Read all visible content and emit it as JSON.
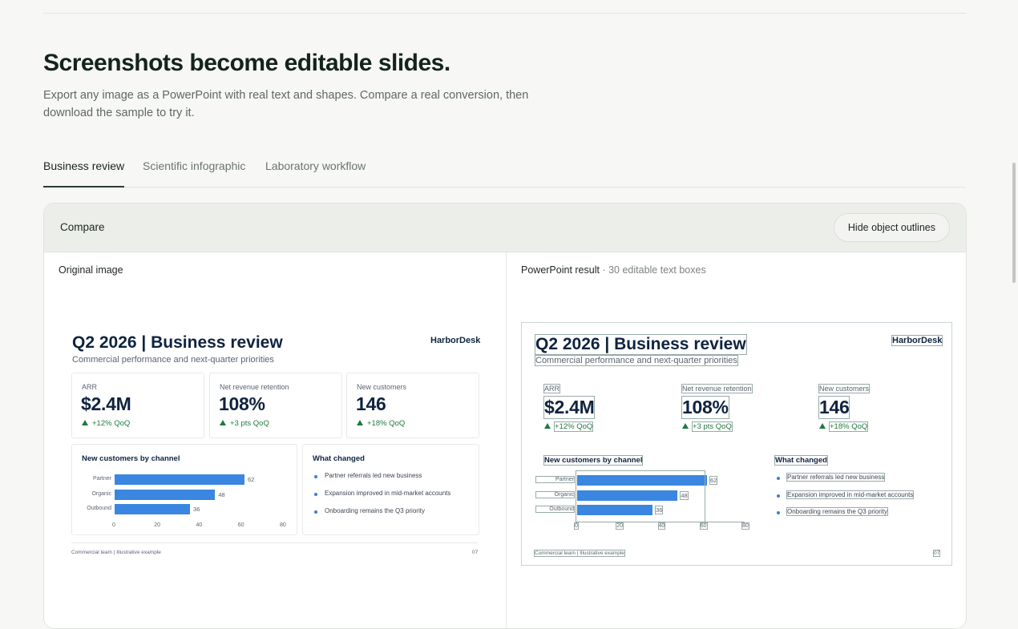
{
  "header": {
    "title": "Screenshots become editable slides.",
    "subtitle": "Export any image as a PowerPoint with real text and shapes. Compare a real conversion, then download the sample to try it."
  },
  "tabs": [
    {
      "label": "Business review",
      "active": true
    },
    {
      "label": "Scientific infographic",
      "active": false
    },
    {
      "label": "Laboratory workflow",
      "active": false
    }
  ],
  "compare": {
    "label": "Compare",
    "toggle_label": "Hide object outlines",
    "left_label": "Original image",
    "right_label": "PowerPoint result",
    "right_meta": "· 30 editable text boxes"
  },
  "slide": {
    "title": "Q2 2026 | Business review",
    "subtitle": "Commercial performance and next-quarter priorities",
    "brand": "HarborDesk",
    "kpis": [
      {
        "label": "ARR",
        "value": "$2.4M",
        "delta": "+12% QoQ"
      },
      {
        "label": "Net revenue retention",
        "value": "108%",
        "delta": "+3 pts QoQ"
      },
      {
        "label": "New customers",
        "value": "146",
        "delta": "+18% QoQ"
      }
    ],
    "chart_title": "New customers by channel",
    "changes_title": "What changed",
    "changes": [
      "Partner referrals led new business",
      "Expansion improved in mid-market accounts",
      "Onboarding remains the Q3 priority"
    ],
    "footer_left": "Commercial team | Illustrative example",
    "footer_right": "07"
  },
  "chart_data": {
    "type": "bar",
    "orientation": "horizontal",
    "title": "New customers by channel",
    "categories": [
      "Partner",
      "Organic",
      "Outbound"
    ],
    "values": [
      62,
      48,
      36
    ],
    "xlim": [
      0,
      80
    ],
    "ticks": [
      "0",
      "20",
      "40",
      "60",
      "80"
    ],
    "value_labels": [
      "62",
      "48",
      "36"
    ],
    "bar_color": "#3a86e0",
    "grid": false
  },
  "colors": {
    "accent_dark": "#14241b",
    "slide_navy": "#0f2340",
    "bar_blue": "#3a86e0",
    "delta_green": "#1f7a3d"
  },
  "icons": {
    "delta_up": "triangle-up-icon",
    "bullet": "dot-icon"
  }
}
